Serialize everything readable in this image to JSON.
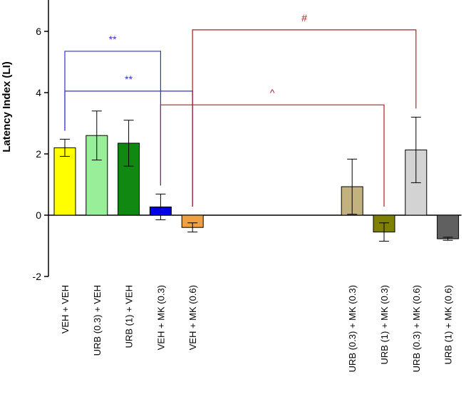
{
  "chart_data": {
    "type": "bar",
    "title": "",
    "xlabel": "",
    "ylabel": "Latency Index (LI)",
    "ylim": [
      -2,
      7
    ],
    "yticks": [
      -2,
      0,
      2,
      4,
      6
    ],
    "grid": false,
    "bars": [
      {
        "category": "VEH + VEH",
        "slot": 0,
        "value": 2.2,
        "error": 0.28,
        "color": "#ffff00"
      },
      {
        "category": "URB (0.3) + VEH",
        "slot": 1,
        "value": 2.6,
        "error": 0.8,
        "color": "#99ee99"
      },
      {
        "category": "URB (1) + VEH",
        "slot": 2,
        "value": 2.35,
        "error": 0.75,
        "color": "#118811"
      },
      {
        "category": "VEH + MK (0.3)",
        "slot": 3,
        "value": 0.27,
        "error": 0.42,
        "color": "#0000ee"
      },
      {
        "category": "VEH + MK (0.6)",
        "slot": 4,
        "value": -0.4,
        "error": 0.15,
        "color": "#f0a040"
      },
      {
        "category": "URB (0.3) + MK (0.3)",
        "slot": 9,
        "value": 0.93,
        "error": 0.9,
        "color": "#c2b280"
      },
      {
        "category": "URB (1) + MK (0.3)",
        "slot": 10,
        "value": -0.55,
        "error": 0.3,
        "color": "#808000"
      },
      {
        "category": "URB (0.3) + MK (0.6)",
        "slot": 11,
        "value": 2.13,
        "error": 1.07,
        "color": "#d3d3d3"
      },
      {
        "category": "URB (1) + MK (0.6)",
        "slot": 12,
        "value": -0.77,
        "error": 0.05,
        "color": "#606060"
      }
    ],
    "annotations": [
      {
        "label": "**",
        "from_slot": 0,
        "to_slot": 3,
        "level": 5.35,
        "color": "#3333cc"
      },
      {
        "label": "**",
        "from_slot": 0,
        "to_slot": 4,
        "level": 4.05,
        "color": "#3333cc"
      },
      {
        "label": "#",
        "from_slot": 4,
        "to_slot": 11,
        "level": 6.05,
        "color": "#aa2222"
      },
      {
        "label": "^",
        "from_slot": 3,
        "to_slot": 10,
        "level": 3.6,
        "color": "#aa2222"
      }
    ]
  }
}
